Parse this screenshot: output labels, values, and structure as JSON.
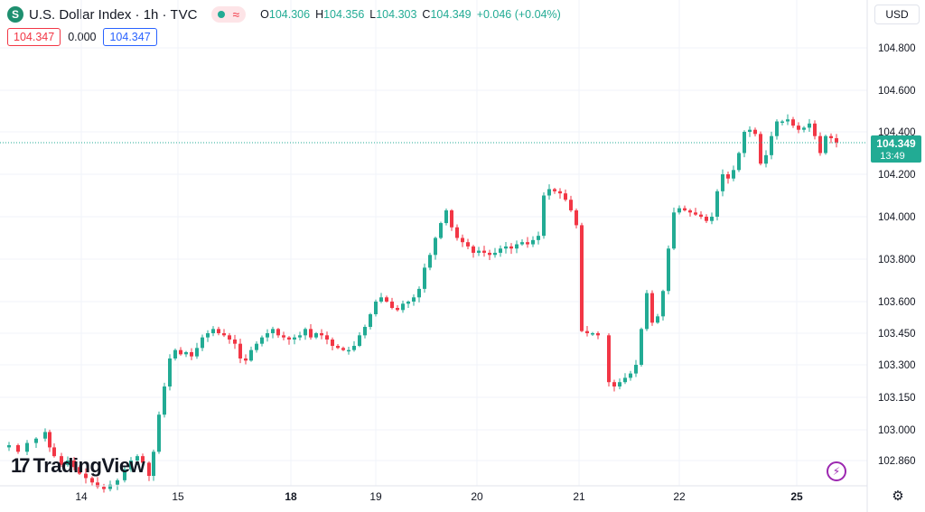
{
  "header": {
    "symbol_icon": "S",
    "title": "U.S. Dollar Index · 1h · TVC",
    "status_icon": "market-open-dot-icon",
    "wave_icon": "≈",
    "ohlc": {
      "o_label": "O",
      "o": "104.306",
      "h_label": "H",
      "h": "104.356",
      "l_label": "L",
      "l": "104.303",
      "c_label": "C",
      "c": "104.349",
      "change": "+0.046 (+0.04%)"
    },
    "sell_price": "104.347",
    "spread": "0.000",
    "buy_price": "104.347"
  },
  "currency": "USD",
  "branding": {
    "logo_text": "TradingView"
  },
  "price_label": {
    "price": "104.349",
    "countdown": "13:49"
  },
  "colors": {
    "up": "#22ab94",
    "down": "#f23645",
    "grid": "#f0f3fa",
    "price_line": "#22ab94"
  },
  "chart_data": {
    "type": "candlestick",
    "title": "U.S. Dollar Index · 1h · TVC",
    "x_ticks": [
      "14",
      "15",
      "18",
      "19",
      "20",
      "21",
      "22",
      "25"
    ],
    "y_ticks": [
      "104.800",
      "104.600",
      "104.400",
      "104.200",
      "104.000",
      "103.800",
      "103.600",
      "103.450",
      "103.300",
      "103.150",
      "103.000",
      "102.860"
    ],
    "y_ticks_num": [
      104.8,
      104.6,
      104.4,
      104.2,
      104.0,
      103.8,
      103.6,
      103.45,
      103.3,
      103.15,
      103.0,
      102.86
    ],
    "last_price": 104.349,
    "grid": true,
    "close_path": [
      [
        0,
        102.92
      ],
      [
        10,
        102.93
      ],
      [
        20,
        102.9
      ],
      [
        30,
        102.94
      ],
      [
        40,
        102.96
      ],
      [
        50,
        102.99
      ],
      [
        55,
        102.92
      ],
      [
        60,
        102.88
      ],
      [
        68,
        102.84
      ],
      [
        75,
        102.86
      ],
      [
        82,
        102.83
      ],
      [
        88,
        102.8
      ],
      [
        95,
        102.78
      ],
      [
        102,
        102.76
      ],
      [
        108,
        102.74
      ],
      [
        115,
        102.73
      ],
      [
        122,
        102.75
      ],
      [
        130,
        102.77
      ],
      [
        138,
        102.82
      ],
      [
        145,
        102.86
      ],
      [
        152,
        102.88
      ],
      [
        158,
        102.85
      ],
      [
        165,
        102.79
      ],
      [
        170,
        102.9
      ],
      [
        176,
        103.07
      ],
      [
        182,
        103.2
      ],
      [
        188,
        103.33
      ],
      [
        194,
        103.37
      ],
      [
        200,
        103.35
      ],
      [
        206,
        103.36
      ],
      [
        212,
        103.34
      ],
      [
        218,
        103.38
      ],
      [
        224,
        103.43
      ],
      [
        230,
        103.45
      ],
      [
        236,
        103.47
      ],
      [
        242,
        103.45
      ],
      [
        248,
        103.44
      ],
      [
        254,
        103.42
      ],
      [
        260,
        103.4
      ],
      [
        266,
        103.33
      ],
      [
        272,
        103.32
      ],
      [
        278,
        103.37
      ],
      [
        284,
        103.4
      ],
      [
        290,
        103.43
      ],
      [
        296,
        103.45
      ],
      [
        302,
        103.47
      ],
      [
        308,
        103.44
      ],
      [
        314,
        103.43
      ],
      [
        320,
        103.42
      ],
      [
        326,
        103.43
      ],
      [
        332,
        103.44
      ],
      [
        338,
        103.47
      ],
      [
        344,
        103.43
      ],
      [
        350,
        103.45
      ],
      [
        356,
        103.44
      ],
      [
        362,
        103.42
      ],
      [
        368,
        103.39
      ],
      [
        374,
        103.38
      ],
      [
        380,
        103.37
      ],
      [
        386,
        103.37
      ],
      [
        392,
        103.39
      ],
      [
        398,
        103.44
      ],
      [
        404,
        103.48
      ],
      [
        410,
        103.54
      ],
      [
        416,
        103.6
      ],
      [
        422,
        103.62
      ],
      [
        428,
        103.6
      ],
      [
        434,
        103.57
      ],
      [
        440,
        103.56
      ],
      [
        446,
        103.59
      ],
      [
        452,
        103.6
      ],
      [
        458,
        103.62
      ],
      [
        464,
        103.66
      ],
      [
        470,
        103.76
      ],
      [
        476,
        103.82
      ],
      [
        482,
        103.9
      ],
      [
        488,
        103.97
      ],
      [
        494,
        104.03
      ],
      [
        500,
        103.95
      ],
      [
        506,
        103.9
      ],
      [
        512,
        103.88
      ],
      [
        518,
        103.86
      ],
      [
        524,
        103.83
      ],
      [
        530,
        103.84
      ],
      [
        536,
        103.83
      ],
      [
        542,
        103.82
      ],
      [
        548,
        103.83
      ],
      [
        554,
        103.85
      ],
      [
        560,
        103.86
      ],
      [
        566,
        103.85
      ],
      [
        572,
        103.87
      ],
      [
        578,
        103.88
      ],
      [
        584,
        103.87
      ],
      [
        590,
        103.89
      ],
      [
        596,
        103.91
      ],
      [
        602,
        104.1
      ],
      [
        608,
        104.13
      ],
      [
        614,
        104.12
      ],
      [
        620,
        104.11
      ],
      [
        626,
        104.08
      ],
      [
        632,
        104.03
      ],
      [
        638,
        103.96
      ],
      [
        644,
        103.46
      ],
      [
        650,
        103.45
      ],
      [
        656,
        103.45
      ],
      [
        662,
        103.44
      ],
      [
        674,
        103.22
      ],
      [
        680,
        103.2
      ],
      [
        686,
        103.22
      ],
      [
        692,
        103.24
      ],
      [
        698,
        103.26
      ],
      [
        704,
        103.3
      ],
      [
        710,
        103.47
      ],
      [
        716,
        103.64
      ],
      [
        722,
        103.5
      ],
      [
        728,
        103.53
      ],
      [
        734,
        103.65
      ],
      [
        740,
        103.85
      ],
      [
        746,
        104.02
      ],
      [
        752,
        104.04
      ],
      [
        758,
        104.03
      ],
      [
        764,
        104.02
      ],
      [
        770,
        104.01
      ],
      [
        776,
        104.0
      ],
      [
        782,
        103.98
      ],
      [
        788,
        104.0
      ],
      [
        794,
        104.12
      ],
      [
        800,
        104.2
      ],
      [
        806,
        104.18
      ],
      [
        812,
        104.22
      ],
      [
        818,
        104.3
      ],
      [
        824,
        104.4
      ],
      [
        830,
        104.41
      ],
      [
        836,
        104.39
      ],
      [
        842,
        104.25
      ],
      [
        848,
        104.29
      ],
      [
        854,
        104.38
      ],
      [
        860,
        104.45
      ],
      [
        866,
        104.45
      ],
      [
        872,
        104.46
      ],
      [
        878,
        104.43
      ],
      [
        884,
        104.41
      ],
      [
        890,
        104.42
      ],
      [
        896,
        104.44
      ],
      [
        902,
        104.38
      ],
      [
        908,
        104.3
      ],
      [
        914,
        104.38
      ],
      [
        920,
        104.37
      ],
      [
        926,
        104.35
      ]
    ]
  }
}
